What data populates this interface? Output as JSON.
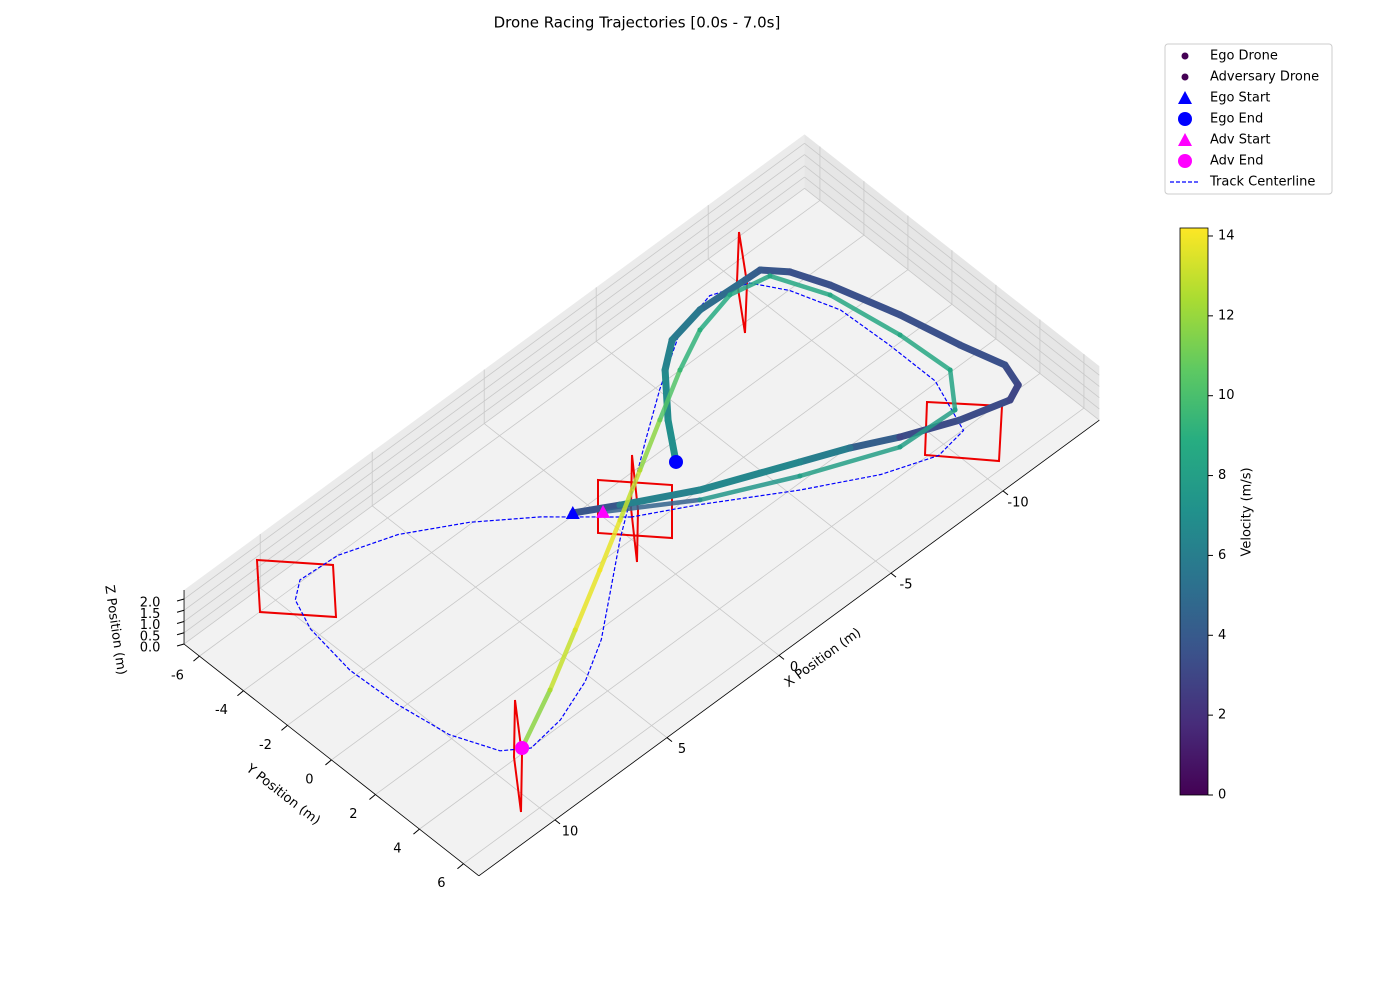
{
  "chart_data": {
    "type": "scatter3d",
    "title": "Drone Racing Trajectories [0.0s - 7.0s]",
    "xlabel": "X Position (m)",
    "ylabel": "Y Position (m)",
    "zlabel": "Z Position (m)",
    "xlim": [
      -14.3,
      13.4
    ],
    "ylim": [
      -6.7,
      6.7
    ],
    "zlim": [
      0,
      2.4
    ],
    "xticks": [
      -10,
      -5,
      0,
      5,
      10
    ],
    "yticks": [
      -6,
      -4,
      -2,
      0,
      2,
      4,
      6
    ],
    "zticks": [
      {
        "value": 0,
        "label": "0.0"
      },
      0.5,
      {
        "value": 1,
        "label": "1.0"
      },
      1.5,
      {
        "value": 2,
        "label": "2.0"
      }
    ],
    "grid": true,
    "colormap": "viridis",
    "colorbar": {
      "label": "Velocity (m/s)",
      "lim": [
        0,
        14.2
      ],
      "ticks": [
        0,
        2,
        4,
        6,
        8,
        10,
        12,
        14
      ]
    },
    "series": [
      {
        "name": "Ego Drone",
        "x": [
          1.24,
          -0.08,
          -2.37,
          -5.5,
          -7.07,
          -8.54,
          -10.43,
          -12.17,
          -12.8,
          -13.08,
          -12.63,
          -12.13,
          -11.39,
          -10.85,
          -10.22,
          -9.58,
          -7.66,
          -6.13,
          -5.09,
          -3.69,
          -2.64
        ],
        "y": [
          -1.41,
          -0.61,
          0.69,
          2.05,
          2.73,
          3.5,
          4.31,
          4.81,
          4.54,
          3.65,
          2.07,
          -0.15,
          -2.58,
          -3.85,
          -4.56,
          -4.59,
          -4.69,
          -4.4,
          -3.66,
          -2.1,
          -0.67
        ],
        "z": [
          1,
          1,
          1,
          1,
          1,
          1,
          1,
          1,
          1,
          1,
          1,
          1,
          1,
          1,
          1,
          1,
          1,
          1,
          1,
          1,
          1
        ],
        "velocity": [
          1.5,
          6,
          6.5,
          6.5,
          5.5,
          3,
          3.5,
          3,
          3,
          3.5,
          3.5,
          3.5,
          3.5,
          3.5,
          4,
          4.5,
          5.5,
          6,
          6.5,
          7,
          7
        ],
        "start": {
          "name": "Ego Start",
          "color": "blue"
        },
        "end": {
          "name": "Ego End",
          "color": "blue"
        }
      },
      {
        "name": "Adversary Drone",
        "x": [
          0.51,
          -2.08,
          -5.09,
          -8.25,
          -10.61,
          -11.67,
          -11.54,
          -11.1,
          -10.27,
          -8.79,
          -7.07,
          -5.43,
          -3.5,
          -1.57,
          0.36,
          2.29,
          4.62,
          6.96,
          9.31
        ],
        "y": [
          -0.78,
          0.99,
          2.47,
          3.8,
          3.9,
          2.6,
          0.45,
          -2.28,
          -4.17,
          -4.48,
          -4.09,
          -3.33,
          -2.28,
          -1.22,
          -0.16,
          0.89,
          2.14,
          3.38,
          4.5
        ],
        "z": [
          1,
          1,
          1,
          1,
          1,
          1,
          1,
          1,
          1,
          1,
          1,
          1,
          1,
          1,
          1,
          1,
          1,
          1,
          1
        ],
        "velocity": [
          2,
          7,
          8,
          8,
          8,
          8.5,
          8.5,
          8.5,
          8.5,
          8.5,
          9,
          9.5,
          11,
          12.5,
          13.5,
          14,
          13.5,
          12.5,
          11
        ],
        "start": {
          "name": "Adv Start",
          "color": "magenta"
        },
        "end": {
          "name": "Adv End",
          "color": "magenta"
        }
      }
    ],
    "track": {
      "name": "Track Centerline",
      "color": "blue",
      "x": [
        0,
        2.1,
        3.9,
        5.9,
        7.9,
        9.5,
        10.2,
        10.7,
        11.0,
        10.9,
        10.6,
        9.9,
        9.1,
        7.6,
        5.9,
        4.3,
        2.6,
        0.9,
        -2.6,
        -4.4,
        -6.6,
        -8.3,
        -9.6,
        -10.3,
        -10.9,
        -11.0,
        -11.0,
        -10.2,
        -8.9,
        -7.0,
        -4.7,
        -1.9,
        0
      ],
      "y": [
        0,
        -2.0,
        -3.4,
        -4.6,
        -5.3,
        -5.4,
        -4.9,
        -3.7,
        -1.6,
        0.5,
        2.5,
        4.1,
        4.7,
        4.5,
        3.9,
        3.0,
        1.7,
        0.4,
        -2.0,
        -3.2,
        -4.5,
        -4.9,
        -4.4,
        -3.3,
        -1.6,
        0.5,
        2.6,
        4.7,
        4.9,
        4.2,
        2.9,
        1.1,
        0
      ],
      "z": [
        1,
        1,
        1,
        1,
        1,
        1,
        1,
        1,
        1,
        1,
        1,
        1,
        1,
        1,
        1,
        1,
        1,
        1,
        1,
        1,
        1,
        1,
        1,
        1,
        1,
        1,
        1,
        1,
        1,
        1,
        1,
        1,
        1
      ]
    }
  }
}
